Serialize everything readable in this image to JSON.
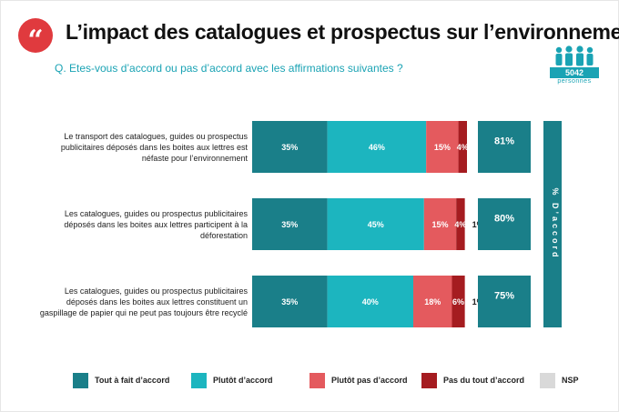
{
  "header": {
    "title": "L’impact des catalogues et prospectus sur l’environnement",
    "question": "Q. Etes-vous d’accord ou pas d’accord avec les affirmations suivantes ?",
    "quote_mark": "“",
    "respondents": {
      "count": "5042",
      "label": "personnes"
    }
  },
  "colors": {
    "tout_a_fait": "#1a7f89",
    "plutot": "#1cb5bf",
    "plutot_pas": "#e45a5e",
    "pas_du_tout": "#a51c20",
    "nsp": "#d9d9d9",
    "accord_box": "#1a7f89",
    "question": "#1aa3b4",
    "badge": "#e03a3e"
  },
  "chart_data": {
    "type": "bar",
    "orientation": "horizontal",
    "stacked": true,
    "xlim": [
      0,
      100
    ],
    "categories": [
      [
        "Le transport des catalogues, guides ou prospectus",
        "publicitaires déposés dans les boites aux lettres est",
        "néfaste pour l’environnement"
      ],
      [
        "Les catalogues, guides ou prospectus publicitaires",
        "déposés dans les boites aux lettres participent à la",
        "déforestation"
      ],
      [
        "Les catalogues, guides ou prospectus publicitaires",
        "déposés dans les boites aux lettres constituent un",
        "gaspillage de papier qui ne peut pas toujours être recyclé"
      ]
    ],
    "series": [
      {
        "name": "Tout à fait d’accord",
        "values": [
          35,
          35,
          35
        ],
        "labels": [
          "35%",
          "35%",
          "35%"
        ]
      },
      {
        "name": "Plutôt d’accord",
        "values": [
          46,
          45,
          40
        ],
        "labels": [
          "46%",
          "45%",
          "40%"
        ]
      },
      {
        "name": "Plutôt pas d’accord",
        "values": [
          15,
          15,
          18
        ],
        "labels": [
          "15%",
          "15%",
          "18%"
        ]
      },
      {
        "name": "Pas du tout d’accord",
        "values": [
          4,
          4,
          6
        ],
        "labels": [
          "4%",
          "4%",
          "6%"
        ]
      },
      {
        "name": "NSP",
        "values": [
          0,
          1,
          1
        ],
        "labels": [
          "",
          "1%",
          "1%"
        ]
      }
    ],
    "accord_totals": [
      "81%",
      "80%",
      "75%"
    ],
    "accord_label": "% D’accord",
    "legend": [
      "Tout à fait d’accord",
      "Plutôt d’accord",
      "Plutôt pas d’accord",
      "Pas du tout d’accord",
      "NSP"
    ],
    "legend_position": "bottom"
  }
}
